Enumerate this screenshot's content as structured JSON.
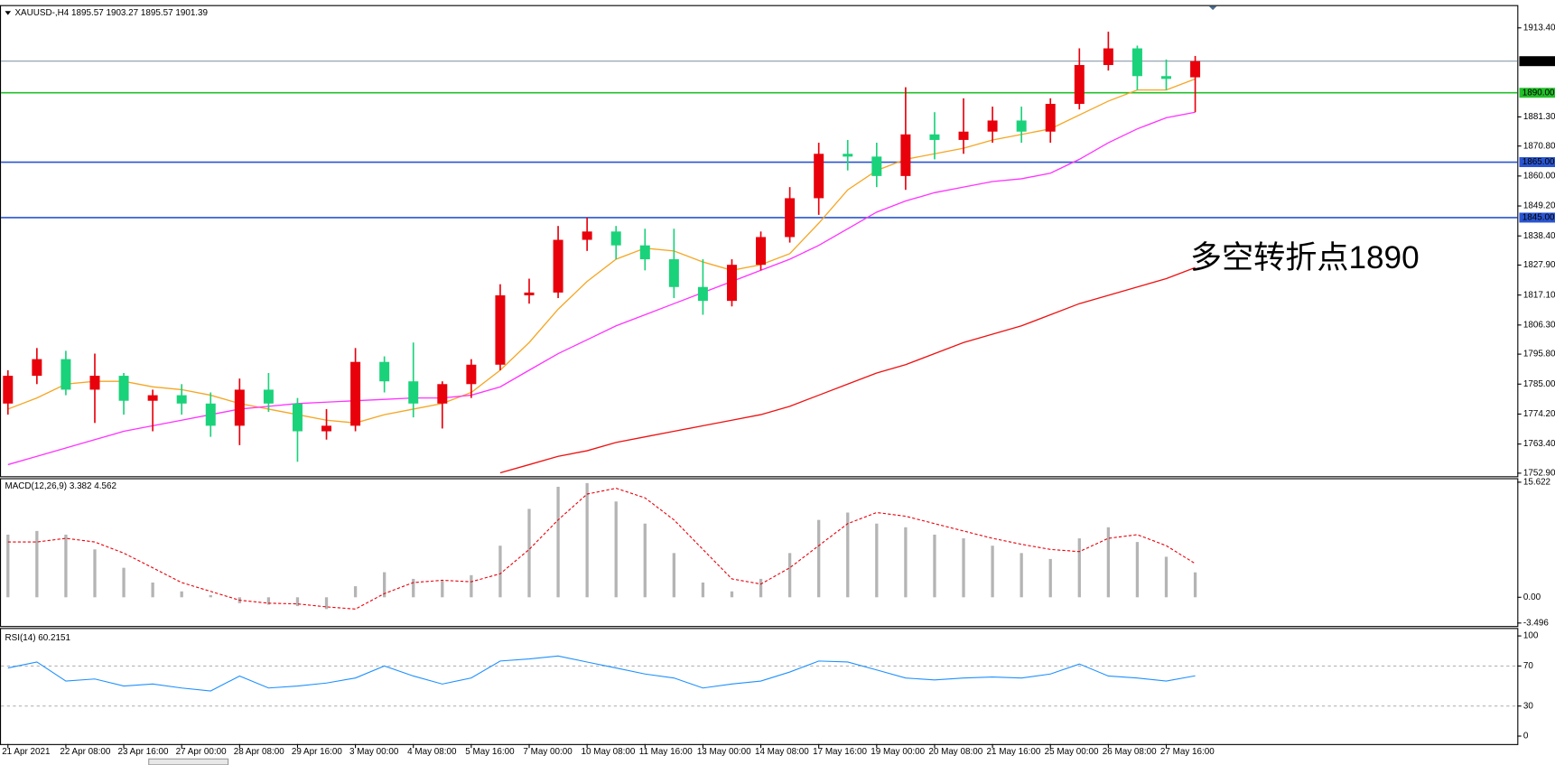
{
  "chart_data": [
    {
      "type": "candlestick",
      "title": "XAUUSD-,H4  1895.57 1903.27 1895.57 1901.39",
      "annotation": {
        "text": "多空转折点1890",
        "color": "#e8000b"
      },
      "categories": [
        "21 Apr 2021",
        null,
        "22 Apr 08:00",
        null,
        "23 Apr 16:00",
        null,
        "27 Apr 00:00",
        null,
        "28 Apr 08:00",
        null,
        "29 Apr 16:00",
        null,
        "3 May 00:00",
        null,
        "4 May 08:00",
        null,
        "5 May 16:00",
        null,
        "7 May 00:00",
        null,
        "10 May 08:00",
        null,
        "11 May 16:00",
        null,
        "13 May 00:00",
        null,
        "14 May 08:00",
        null,
        "17 May 16:00",
        null,
        "19 May 00:00",
        null,
        "20 May 08:00",
        null,
        "21 May 16:00",
        null,
        "25 May 00:00",
        null,
        "26 May 08:00",
        null,
        "27 May 16:00",
        null
      ],
      "open": [
        1778,
        1788,
        1794,
        1783,
        1788,
        1779,
        1781,
        1778,
        1770,
        1783,
        1778,
        1768,
        1770,
        1793,
        1786,
        1778,
        1785,
        1792,
        1817,
        1818,
        1837,
        1840,
        1835,
        1830,
        1820,
        1815,
        1828,
        1838,
        1852,
        1868,
        1867,
        1860,
        1875,
        1873,
        1876,
        1880,
        1876,
        1886,
        1900,
        1906,
        1896,
        1895.57
      ],
      "high": [
        1790,
        1798,
        1797,
        1796,
        1789,
        1783,
        1785,
        1782,
        1787,
        1789,
        1780,
        1776,
        1798,
        1795,
        1800,
        1786,
        1794,
        1821,
        1823,
        1842,
        1845,
        1842,
        1841,
        1841,
        1830,
        1830,
        1840,
        1856,
        1872,
        1873,
        1872,
        1892,
        1883,
        1888,
        1885,
        1885,
        1888,
        1906,
        1912,
        1907,
        1902,
        1903.27
      ],
      "low": [
        1774,
        1785,
        1781,
        1771,
        1774,
        1768,
        1774,
        1766,
        1763,
        1775,
        1757,
        1765,
        1768,
        1782,
        1773,
        1769,
        1780,
        1790,
        1814,
        1816,
        1833,
        1830,
        1826,
        1816,
        1810,
        1813,
        1826,
        1836,
        1846,
        1862,
        1856,
        1855,
        1866,
        1868,
        1872,
        1872,
        1872,
        1884,
        1898,
        1891,
        1891,
        1883
      ],
      "close": [
        1788,
        1794,
        1783,
        1788,
        1779,
        1781,
        1778,
        1770,
        1783,
        1778,
        1768,
        1770,
        1793,
        1786,
        1778,
        1785,
        1792,
        1817,
        1818,
        1837,
        1840,
        1835,
        1830,
        1820,
        1815,
        1828,
        1838,
        1852,
        1868,
        1867,
        1860,
        1875,
        1873,
        1876,
        1880,
        1876,
        1886,
        1900,
        1906,
        1896,
        1895,
        1901.39
      ],
      "up_color": "#e8000b",
      "down_color": "#1ad27a",
      "lines": [
        {
          "color": "#f5a623",
          "values": [
            1776,
            1780,
            1785,
            1786,
            1786,
            1784,
            1783,
            1781,
            1778,
            1776,
            1774,
            1772,
            1771,
            1774,
            1776,
            1778,
            1782,
            1790,
            1800,
            1812,
            1822,
            1830,
            1834,
            1833,
            1829,
            1826,
            1828,
            1832,
            1843,
            1855,
            1862,
            1866,
            1868,
            1870,
            1873,
            1875,
            1877,
            1882,
            1887,
            1891,
            1891,
            1895
          ]
        },
        {
          "color": "#ff33ff",
          "values": [
            1756,
            1759,
            1762,
            1765,
            1768,
            1770,
            1772,
            1774,
            1776,
            1777,
            1778,
            1778.5,
            1779,
            1779.5,
            1780,
            1780,
            1781,
            1784,
            1790,
            1796,
            1801,
            1806,
            1810,
            1814,
            1818,
            1822,
            1826,
            1830,
            1835,
            1841,
            1847,
            1851,
            1854,
            1856,
            1858,
            1859,
            1861,
            1866,
            1872,
            1877,
            1881,
            1883
          ]
        },
        {
          "color": "#ee1111",
          "values": [
            null,
            null,
            null,
            null,
            null,
            null,
            null,
            null,
            null,
            null,
            null,
            null,
            null,
            null,
            null,
            null,
            null,
            1753,
            1756,
            1759,
            1761,
            1764,
            1766,
            1768,
            1770,
            1772,
            1774,
            1777,
            1781,
            1785,
            1789,
            1792,
            1796,
            1800,
            1803,
            1806,
            1810,
            1814,
            1817,
            1820,
            1823,
            1827
          ]
        }
      ],
      "levels": [
        {
          "value": 1901.39,
          "color": "#8b9aa8",
          "label_bg": "#000000"
        },
        {
          "value": 1890,
          "label": "1890.00",
          "color": "#22c02a",
          "label_bg": "#22c02a"
        },
        {
          "value": 1865,
          "label": "1865.00",
          "color": "#2a55d0",
          "label_bg": "#2a55d0"
        },
        {
          "value": 1845,
          "label": "1845.00",
          "color": "#2a55d0",
          "label_bg": "#2a55d0"
        }
      ],
      "ylim": [
        1751.8,
        1921.6
      ],
      "yticks": [
        {
          "value": 1913.4,
          "label": "1913.40"
        },
        {
          "value": 1881.3,
          "label": "1881.30"
        },
        {
          "value": 1870.8,
          "label": "1870.80"
        },
        {
          "value": 1860,
          "label": "1860.00"
        },
        {
          "value": 1849.2,
          "label": "1849.20"
        },
        {
          "value": 1838.4,
          "label": "1838.40"
        },
        {
          "value": 1827.9,
          "label": "1827.90"
        },
        {
          "value": 1817.1,
          "label": "1817.10"
        },
        {
          "value": 1806.3,
          "label": "1806.30"
        },
        {
          "value": 1795.8,
          "label": "1795.80"
        },
        {
          "value": 1785,
          "label": "1785.00"
        },
        {
          "value": 1774.2,
          "label": "1774.20"
        },
        {
          "value": 1763.4,
          "label": "1763.40"
        },
        {
          "value": 1752.9,
          "label": "1752.90"
        }
      ]
    },
    {
      "type": "macd",
      "title": "MACD(12,26,9) 3.382 4.562",
      "values": [
        8.5,
        9,
        8.5,
        6.5,
        4,
        2,
        0.8,
        0.3,
        -0.8,
        -1,
        -1.2,
        -1.6,
        1.5,
        3.4,
        2.5,
        2.2,
        3,
        7,
        12,
        15,
        15.5,
        13,
        10,
        6,
        2,
        0.8,
        2.5,
        6,
        10.5,
        11.5,
        10,
        9.5,
        8.5,
        8,
        7,
        6,
        5.2,
        8,
        9.5,
        7.5,
        5.5,
        3.382
      ],
      "color": "#b4b4b4",
      "signal": {
        "color": "#e8000b",
        "values": [
          7.5,
          7.5,
          8,
          7.5,
          6,
          4,
          2,
          0.8,
          -0.4,
          -0.8,
          -0.9,
          -1.3,
          -1.6,
          0.5,
          2,
          2.3,
          2.1,
          3.2,
          6.5,
          10.5,
          14,
          14.8,
          13.5,
          10.5,
          6.5,
          2.5,
          1.8,
          4,
          7,
          10,
          11.5,
          11,
          10,
          9,
          8,
          7.2,
          6.5,
          6.2,
          8,
          8.5,
          7,
          4.562
        ]
      },
      "ylim": [
        -3.496,
        15.622
      ],
      "yticks": [
        15.622,
        {
          "value": 0,
          "label": "0.00"
        },
        -3.496
      ]
    },
    {
      "type": "line",
      "title": "RSI(14) 60.2151",
      "values": [
        68,
        74,
        55,
        57,
        50,
        52,
        48,
        45,
        60,
        48,
        50,
        53,
        58,
        70,
        60,
        52,
        58,
        75,
        77,
        80,
        74,
        68,
        62,
        58,
        48,
        52,
        55,
        64,
        75,
        74,
        66,
        58,
        56,
        58,
        59,
        58,
        62,
        72,
        60,
        58,
        55,
        60.2151
      ],
      "color": "#1e90ff",
      "levels": [
        70,
        30
      ],
      "ylim": [
        0,
        100
      ],
      "yticks": [
        100,
        70,
        30,
        0
      ]
    }
  ]
}
